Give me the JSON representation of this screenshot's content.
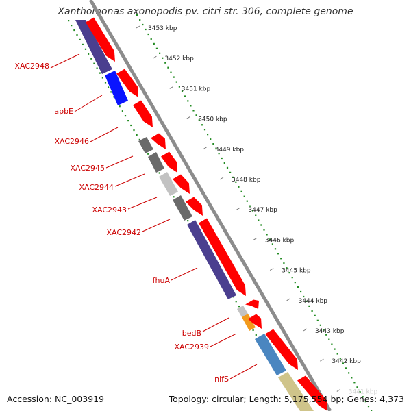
{
  "title": "Xanthomonas axonopodis pv. citri str. 306, complete genome",
  "accession_text": "Accession: NC_003919",
  "summary_text": "Topology: circular; Length: 5,175,554 bp; Genes: 4,373",
  "kbp_ticks": [
    "3453 kbp",
    "3452 kbp",
    "3451 kbp",
    "3450 kbp",
    "3449 kbp",
    "3448 kbp",
    "3447 kbp",
    "3446 kbp",
    "3445 kbp",
    "3444 kbp",
    "3443 kbp",
    "3442 kbp",
    "3441 kbp"
  ],
  "gene_labels": [
    "XAC2948",
    "apbE",
    "XAC2946",
    "XAC2945",
    "XAC2944",
    "XAC2943",
    "XAC2942",
    "fhuA",
    "bedB",
    "XAC2939",
    "nifS"
  ],
  "colors": {
    "forward_cds": "#ff0000",
    "label": "#cc0000",
    "backbone": "#8c8c8c",
    "gc_dots": "#228b22",
    "cog_purple": "#4b3f8f",
    "cog_blue": "#0a14ff",
    "cog_dark_gray": "#6a6a6a",
    "cog_light_gray": "#c2c2c2",
    "cog_steel_blue": "#4a86c0",
    "cog_tan": "#cfc48a",
    "cog_orange": "#f29a1c"
  }
}
